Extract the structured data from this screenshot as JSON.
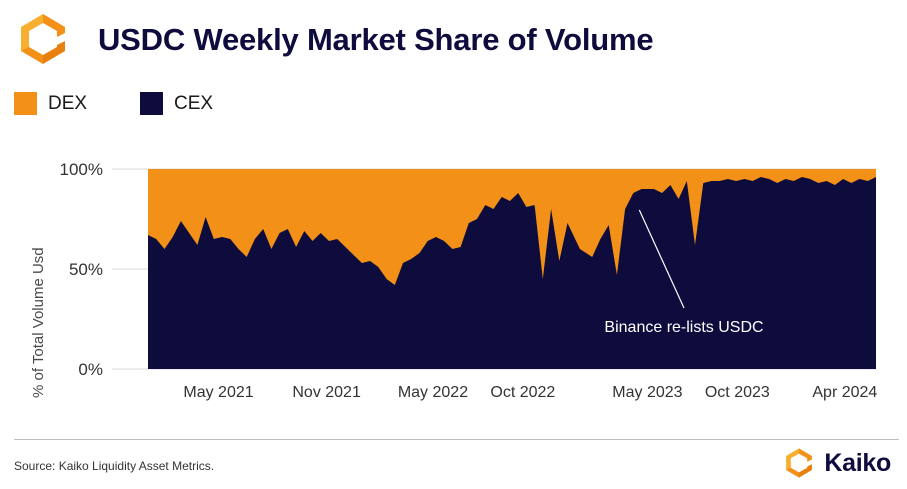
{
  "header": {
    "logo_icon": "kaiko-hexagon-logo-icon",
    "title": "USDC Weekly Market Share of Volume"
  },
  "legend": [
    {
      "label": "DEX",
      "color": "#F39018"
    },
    {
      "label": "CEX",
      "color": "#0E0B3D"
    }
  ],
  "chart_data": {
    "type": "area",
    "stacked": true,
    "percent_stacked": true,
    "title": "USDC Weekly Market Share of Volume",
    "ylabel": "% of Total Volume Usd",
    "xlabel": "",
    "ylim": [
      0,
      100
    ],
    "yticks": [
      0,
      50,
      100
    ],
    "ytick_labels": [
      "0%",
      "50%",
      "100%"
    ],
    "xticks": [
      {
        "label": "May 2021",
        "date": "2021-05-01"
      },
      {
        "label": "Nov 2021",
        "date": "2021-11-01"
      },
      {
        "label": "May 2022",
        "date": "2022-05-01"
      },
      {
        "label": "Oct 2022",
        "date": "2022-10-01"
      },
      {
        "label": "May 2023",
        "date": "2023-05-01"
      },
      {
        "label": "Oct 2023",
        "date": "2023-10-01"
      },
      {
        "label": "Apr 2024",
        "date": "2024-04-01"
      }
    ],
    "xlim": [
      "2021-01-15",
      "2024-06-01"
    ],
    "grid": true,
    "legend_position": "top-left",
    "series": [
      {
        "name": "CEX",
        "color": "#0E0B3D",
        "points": [
          [
            "2021-01-01",
            67
          ],
          [
            "2021-01-15",
            65
          ],
          [
            "2021-01-29",
            60
          ],
          [
            "2021-02-12",
            66
          ],
          [
            "2021-02-26",
            74
          ],
          [
            "2021-03-12",
            68
          ],
          [
            "2021-03-26",
            62
          ],
          [
            "2021-04-09",
            76
          ],
          [
            "2021-04-23",
            65
          ],
          [
            "2021-05-07",
            66
          ],
          [
            "2021-05-21",
            65
          ],
          [
            "2021-06-04",
            60
          ],
          [
            "2021-06-18",
            56
          ],
          [
            "2021-07-02",
            65
          ],
          [
            "2021-07-16",
            70
          ],
          [
            "2021-07-30",
            60
          ],
          [
            "2021-08-13",
            68
          ],
          [
            "2021-08-27",
            70
          ],
          [
            "2021-09-10",
            61
          ],
          [
            "2021-09-24",
            69
          ],
          [
            "2021-10-08",
            64
          ],
          [
            "2021-10-22",
            68
          ],
          [
            "2021-11-05",
            64
          ],
          [
            "2021-11-19",
            65
          ],
          [
            "2021-12-03",
            61
          ],
          [
            "2021-12-17",
            57
          ],
          [
            "2021-12-31",
            53
          ],
          [
            "2022-01-14",
            54
          ],
          [
            "2022-01-28",
            51
          ],
          [
            "2022-02-11",
            45
          ],
          [
            "2022-02-25",
            42
          ],
          [
            "2022-03-11",
            53
          ],
          [
            "2022-03-25",
            55
          ],
          [
            "2022-04-08",
            58
          ],
          [
            "2022-04-22",
            64
          ],
          [
            "2022-05-06",
            66
          ],
          [
            "2022-05-20",
            64
          ],
          [
            "2022-06-03",
            60
          ],
          [
            "2022-06-17",
            61
          ],
          [
            "2022-07-01",
            73
          ],
          [
            "2022-07-15",
            75
          ],
          [
            "2022-07-29",
            82
          ],
          [
            "2022-08-12",
            80
          ],
          [
            "2022-08-26",
            86
          ],
          [
            "2022-09-09",
            84
          ],
          [
            "2022-09-23",
            88
          ],
          [
            "2022-10-07",
            81
          ],
          [
            "2022-10-21",
            82
          ],
          [
            "2022-11-04",
            45
          ],
          [
            "2022-11-18",
            80
          ],
          [
            "2022-12-02",
            54
          ],
          [
            "2022-12-16",
            73
          ],
          [
            "2023-01-06",
            60
          ],
          [
            "2023-01-27",
            56
          ],
          [
            "2023-02-10",
            65
          ],
          [
            "2023-02-24",
            72
          ],
          [
            "2023-03-10",
            47
          ],
          [
            "2023-03-24",
            80
          ],
          [
            "2023-04-07",
            88
          ],
          [
            "2023-04-21",
            90
          ],
          [
            "2023-05-12",
            90
          ],
          [
            "2023-05-26",
            88
          ],
          [
            "2023-06-09",
            92
          ],
          [
            "2023-06-23",
            85
          ],
          [
            "2023-07-07",
            94
          ],
          [
            "2023-07-21",
            62
          ],
          [
            "2023-08-04",
            93
          ],
          [
            "2023-08-18",
            94
          ],
          [
            "2023-09-01",
            94
          ],
          [
            "2023-09-15",
            95
          ],
          [
            "2023-09-29",
            94
          ],
          [
            "2023-10-13",
            95
          ],
          [
            "2023-10-27",
            94
          ],
          [
            "2023-11-10",
            96
          ],
          [
            "2023-11-24",
            95
          ],
          [
            "2023-12-08",
            93
          ],
          [
            "2023-12-22",
            95
          ],
          [
            "2024-01-05",
            94
          ],
          [
            "2024-01-19",
            96
          ],
          [
            "2024-02-02",
            95
          ],
          [
            "2024-02-16",
            93
          ],
          [
            "2024-03-01",
            94
          ],
          [
            "2024-03-15",
            92
          ],
          [
            "2024-03-29",
            95
          ],
          [
            "2024-04-12",
            93
          ],
          [
            "2024-04-26",
            95
          ],
          [
            "2024-05-10",
            94
          ],
          [
            "2024-05-24",
            96
          ]
        ]
      },
      {
        "name": "DEX",
        "color": "#F39018",
        "note_series": "remainder to 100%"
      }
    ],
    "annotations": [
      {
        "text": "Binance re-lists USDC",
        "date": "2023-04-07",
        "value": 80
      }
    ]
  },
  "footer": {
    "source": "Source: Kaiko Liquidity Asset Metrics.",
    "brand_icon": "kaiko-hexagon-logo-icon",
    "brand_name": "Kaiko"
  }
}
